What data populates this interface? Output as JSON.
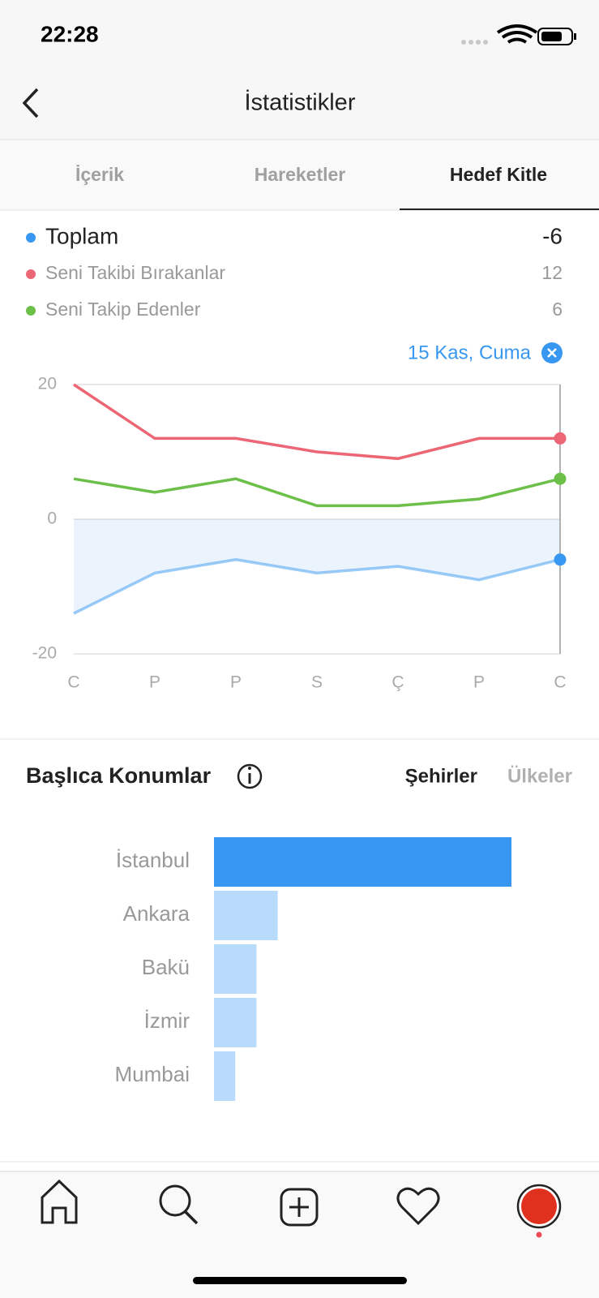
{
  "status_bar": {
    "time": "22:28"
  },
  "header": {
    "title": "İstatistikler"
  },
  "tabs": [
    "İçerik",
    "Hareketler",
    "Hedef Kitle"
  ],
  "chart_data": [
    {
      "type": "line",
      "selected_label": "15 Kas, Cuma",
      "categories": [
        "C",
        "P",
        "P",
        "S",
        "Ç",
        "P",
        "C"
      ],
      "series": [
        {
          "name": "Toplam",
          "color": "#3897f0",
          "area": true,
          "values": [
            -14,
            -8,
            -6,
            -8,
            -7,
            -9,
            -6
          ]
        },
        {
          "name": "Seni Takibi Bırakanlar",
          "color": "#ed6675",
          "values": [
            20,
            12,
            12,
            10,
            9,
            12,
            12
          ]
        },
        {
          "name": "Seni Takip Edenler",
          "color": "#6cc04a",
          "values": [
            6,
            4,
            6,
            2,
            2,
            3,
            6
          ]
        }
      ],
      "ylim": [
        -20,
        20
      ],
      "yticks": [
        -20,
        0,
        20
      ],
      "grid": true
    },
    {
      "type": "hbar",
      "title": "Başlıca Konumlar",
      "categories": [
        "İstanbul",
        "Ankara",
        "Bakü",
        "İzmir",
        "Mumbai"
      ],
      "values": [
        14,
        3,
        2,
        2,
        1
      ],
      "color": "#b8dafb",
      "highlight_color": "#3897f0"
    }
  ],
  "location_tabs": [
    "Şehirler",
    "Ülkeler"
  ]
}
